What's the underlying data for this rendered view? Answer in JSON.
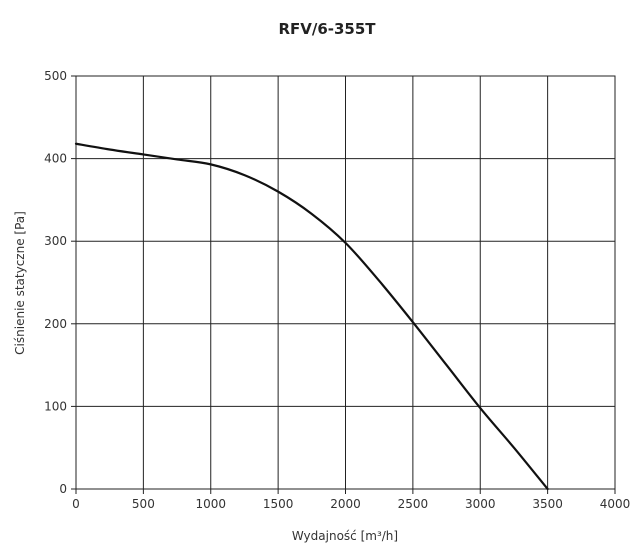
{
  "chart_data": {
    "type": "line",
    "title": "RFV/6-355T",
    "xlabel": "Wydajność [m³/h]",
    "ylabel": "Ciśnienie statyczne [Pa]",
    "xlim": [
      0,
      4000
    ],
    "ylim": [
      0,
      500
    ],
    "x_ticks": [
      "0",
      "500",
      "1000",
      "1500",
      "2000",
      "2500",
      "3000",
      "3500",
      "4000"
    ],
    "y_ticks": [
      "0",
      "100",
      "200",
      "300",
      "400",
      "500"
    ],
    "grid": true,
    "series": [
      {
        "x": [
          0,
          250,
          500,
          750,
          1000,
          1250,
          1500,
          1750,
          2000,
          2250,
          2500,
          2750,
          3000,
          3250,
          3500
        ],
        "y": [
          418,
          411,
          405,
          399,
          393,
          380,
          360,
          333,
          298,
          252,
          202,
          150,
          98,
          50,
          0
        ],
        "color": "#111111"
      }
    ]
  }
}
